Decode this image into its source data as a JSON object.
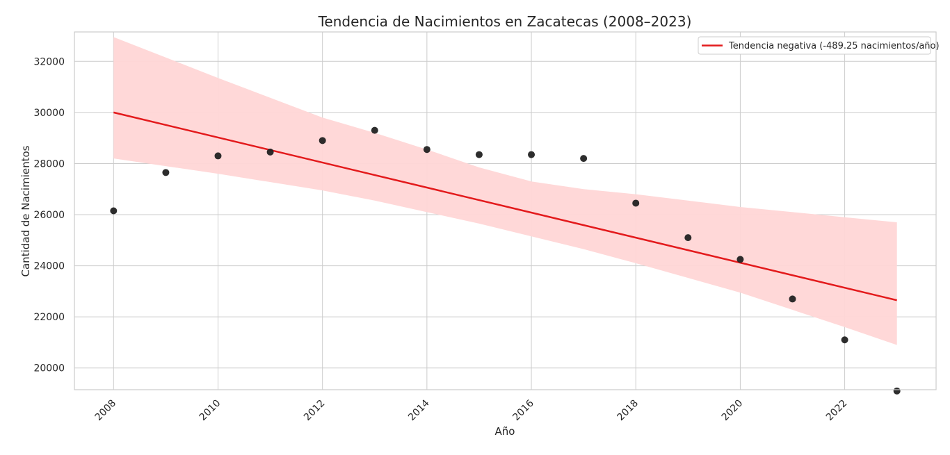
{
  "chart_data": {
    "type": "scatter",
    "title": "Tendencia de Nacimientos en Zacatecas (2008–2023)",
    "xlabel": "Año",
    "ylabel": "Cantidad de Nacimientos",
    "xlim": [
      2007.25,
      2023.75
    ],
    "ylim": [
      19150,
      33150
    ],
    "x_ticks": [
      2008,
      2010,
      2012,
      2014,
      2016,
      2018,
      2020,
      2022
    ],
    "y_ticks": [
      20000,
      22000,
      24000,
      26000,
      28000,
      30000,
      32000
    ],
    "x_tick_rotation": 45,
    "grid": true,
    "legend_position": "top-right",
    "series": [
      {
        "kind": "points",
        "color": "#222222",
        "x": [
          2008,
          2009,
          2010,
          2011,
          2012,
          2013,
          2014,
          2015,
          2016,
          2017,
          2018,
          2019,
          2020,
          2021,
          2022,
          2023
        ],
        "y": [
          26150,
          27650,
          28300,
          28450,
          28900,
          29300,
          28550,
          28350,
          28350,
          28200,
          26450,
          25100,
          24250,
          22700,
          21100,
          19100
        ]
      },
      {
        "kind": "line",
        "name": "Tendencia negativa (-489.25 nacimientos/año)",
        "color": "#e31a1c",
        "x": [
          2008,
          2023
        ],
        "y": [
          30000,
          22650
        ]
      },
      {
        "kind": "confidence_band",
        "color": "#ffd6d6",
        "x": [
          2008,
          2010,
          2012,
          2013,
          2014,
          2015,
          2016,
          2017,
          2018,
          2020,
          2022,
          2023
        ],
        "upper": [
          32950,
          31350,
          29800,
          29200,
          28550,
          27850,
          27300,
          27000,
          26800,
          26300,
          25900,
          25700
        ],
        "lower": [
          28200,
          27600,
          26950,
          26550,
          26100,
          25650,
          25150,
          24650,
          24100,
          22950,
          21600,
          20900
        ]
      }
    ]
  }
}
